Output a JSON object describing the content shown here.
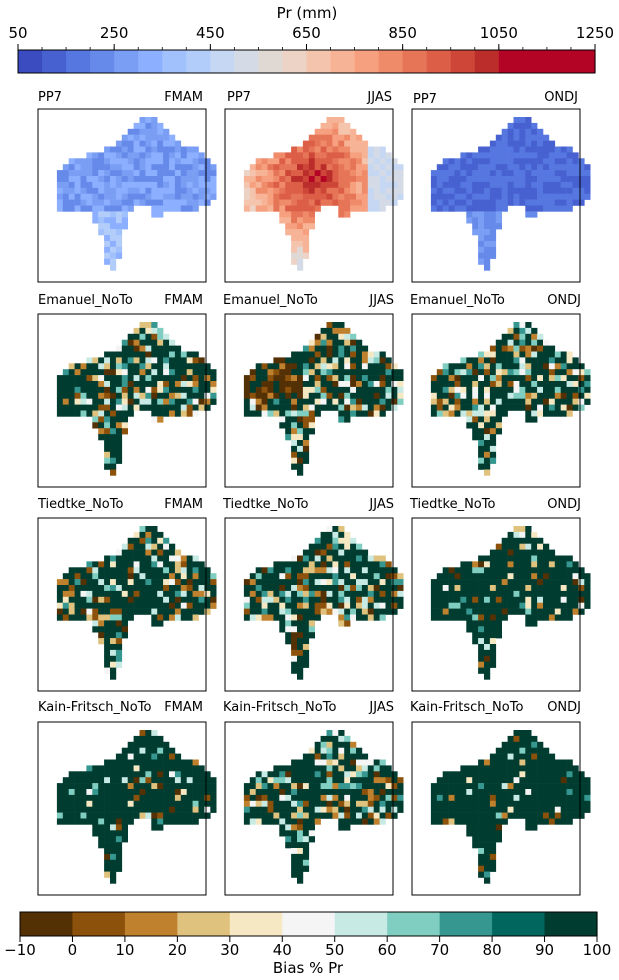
{
  "top_colorbar": {
    "label": "Pr (mm)",
    "ticks": [
      "50",
      "250",
      "450",
      "650",
      "850",
      "1050",
      "1250"
    ],
    "min": 50,
    "max": 1250,
    "n_bins": 24,
    "colors": [
      "#3b4cc0",
      "#4761d0",
      "#5677e0",
      "#668ae9",
      "#799ef3",
      "#8cafff",
      "#a0c1fc",
      "#b3cdfa",
      "#c5d7f2",
      "#d5dbe6",
      "#e0d9d3",
      "#ecd3c5",
      "#f5c4ac",
      "#f7b396",
      "#f6a080",
      "#f08b6a",
      "#e67557",
      "#dc5e47",
      "#cd4638",
      "#bb2d2b",
      "#b40426",
      "#b40426",
      "#b40426",
      "#b40426"
    ]
  },
  "bottom_colorbar": {
    "label": "Bias % Pr",
    "ticks": [
      "−10",
      "0",
      "10",
      "20",
      "30",
      "40",
      "50",
      "60",
      "70",
      "80",
      "90",
      "100"
    ],
    "colors": [
      "#543005",
      "#8c510a",
      "#bf812d",
      "#dfc27d",
      "#f6e8c3",
      "#f5f5f5",
      "#c7eae5",
      "#80cdc1",
      "#35978f",
      "#01665e",
      "#003c30"
    ]
  },
  "panels": [
    {
      "model": "PP7",
      "season": "FMAM"
    },
    {
      "model": "PP7",
      "season": "JJAS"
    },
    {
      "model": "PP7",
      "season": "ONDJ"
    },
    {
      "model": "Emanuel_NoTo",
      "season": "FMAM"
    },
    {
      "model": "Emanuel_NoTo",
      "season": "JJAS"
    },
    {
      "model": "Emanuel_NoTo",
      "season": "ONDJ"
    },
    {
      "model": "Tiedtke_NoTo",
      "season": "FMAM"
    },
    {
      "model": "Tiedtke_NoTo",
      "season": "JJAS"
    },
    {
      "model": "Tiedtke_NoTo",
      "season": "ONDJ"
    },
    {
      "model": "Kain-Fritsch_NoTo",
      "season": "FMAM"
    },
    {
      "model": "Kain-Fritsch_NoTo",
      "season": "JJAS"
    },
    {
      "model": "Kain-Fritsch_NoTo",
      "season": "ONDJ"
    }
  ],
  "chart_data": {
    "type": "heatmap",
    "rows": [
      "PP7",
      "Emanuel_NoTo",
      "Tiedtke_NoTo",
      "Kain-Fritsch_NoTo"
    ],
    "columns": [
      "FMAM",
      "JJAS",
      "ONDJ"
    ],
    "top_colorbar_range": [
      50,
      1250
    ],
    "bottom_colorbar_range": [
      -10,
      100
    ],
    "approx_dominant_values": {
      "PP7": {
        "FMAM": 200,
        "JJAS": 950,
        "ONDJ": 150
      },
      "Emanuel_NoTo": {
        "FMAM": 95,
        "JJAS": 60,
        "ONDJ": 95
      },
      "Tiedtke_NoTo": {
        "FMAM": 95,
        "JJAS": 70,
        "ONDJ": 100
      },
      "Kain-Fritsch_NoTo": {
        "FMAM": 100,
        "JJAS": 95,
        "ONDJ": 100
      }
    }
  }
}
